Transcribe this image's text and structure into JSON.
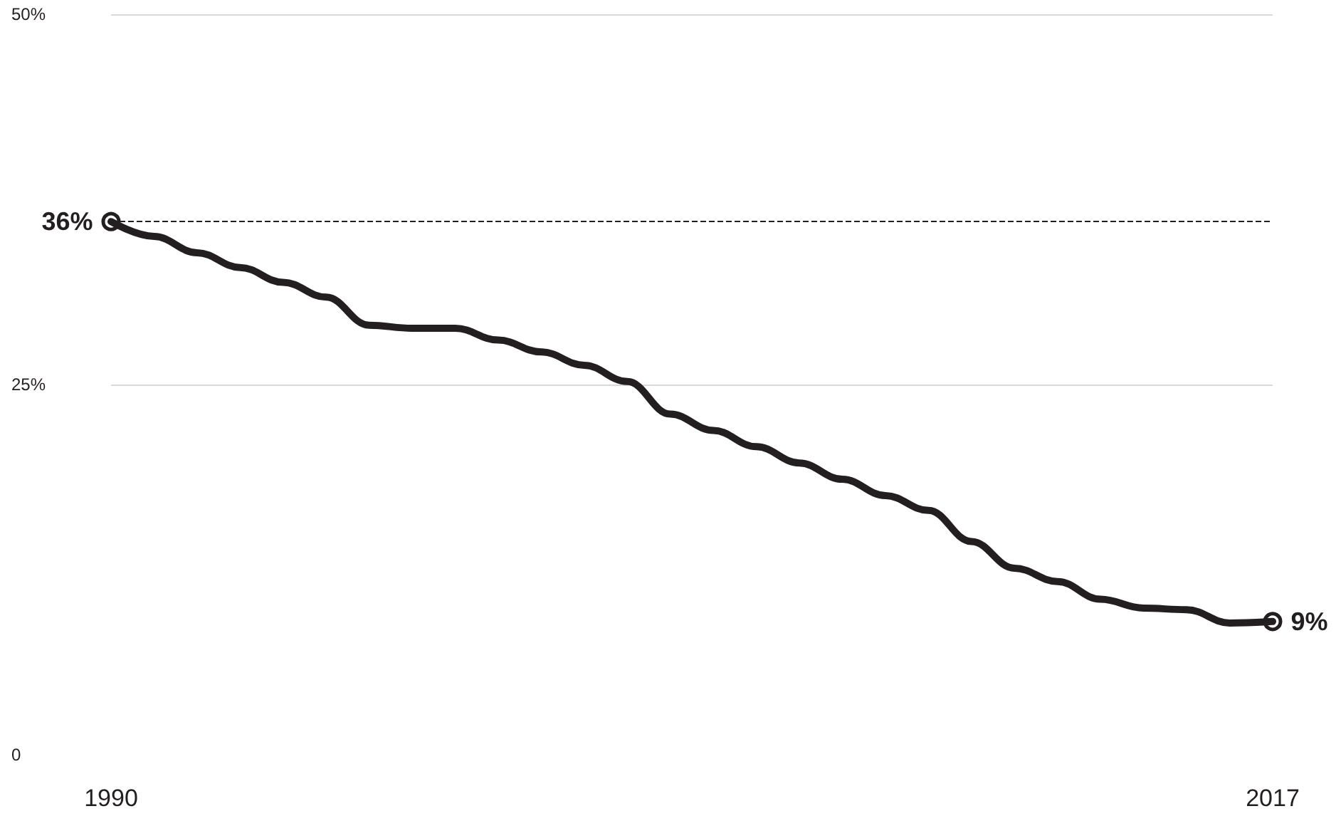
{
  "chart_data": {
    "type": "line",
    "categories": [
      "1990",
      null,
      null,
      null,
      null,
      null,
      null,
      null,
      null,
      null,
      null,
      null,
      null,
      null,
      null,
      null,
      null,
      null,
      null,
      null,
      null,
      null,
      null,
      null,
      null,
      null,
      null,
      "2017"
    ],
    "series": [
      {
        "color": "#231f20",
        "values": [
          36,
          35.0,
          33.9,
          32.9,
          31.9,
          30.9,
          29.0,
          28.8,
          28.8,
          28.0,
          27.2,
          26.3,
          25.2,
          23.0,
          21.9,
          20.8,
          19.7,
          18.6,
          17.5,
          16.5,
          14.4,
          12.6,
          11.7,
          10.5,
          9.9,
          9.8,
          8.9,
          9
        ],
        "value_labels": [
          "36%",
          null,
          null,
          null,
          null,
          null,
          null,
          null,
          null,
          null,
          null,
          null,
          null,
          null,
          null,
          null,
          null,
          null,
          null,
          null,
          null,
          null,
          null,
          null,
          null,
          null,
          null,
          "9%"
        ]
      }
    ],
    "ylim": [
      0,
      50
    ],
    "yticks": [
      {
        "value": 0,
        "label": "0"
      },
      {
        "value": 25,
        "label": "25%"
      },
      {
        "value": 50,
        "label": "50%"
      }
    ],
    "grid": "y",
    "line_style": "solid",
    "ref_lines": [
      {
        "axis": "y",
        "value": 36,
        "label": null,
        "color": "#231f20",
        "line_style": "dashed"
      }
    ]
  }
}
